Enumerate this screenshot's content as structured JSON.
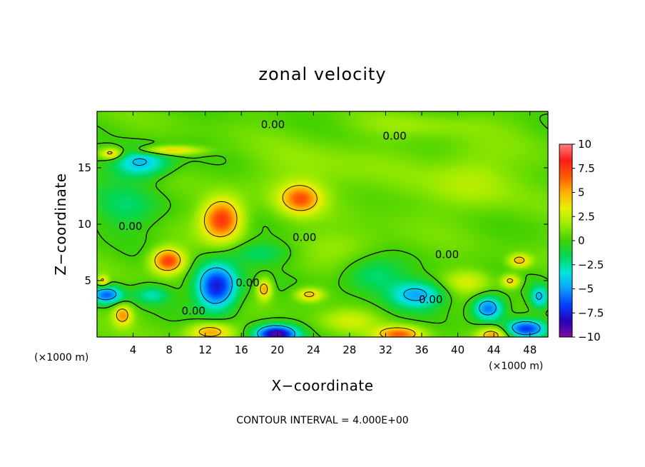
{
  "chart_data": {
    "type": "heatmap",
    "title": "zonal velocity",
    "xlabel": "X−coordinate",
    "ylabel": "Z−coordinate",
    "x_unit": "(×1000 m)",
    "xlim": [
      0,
      50
    ],
    "ylim": [
      0,
      20
    ],
    "x_ticks": [
      4,
      8,
      12,
      16,
      20,
      24,
      28,
      32,
      36,
      40,
      44,
      48
    ],
    "y_ticks": [
      5,
      10,
      15
    ],
    "colorbar": {
      "min": -10,
      "max": 10,
      "ticks": [
        "10",
        "7.5",
        "5",
        "2.5",
        "0",
        "−2.5",
        "−5",
        "−7.5",
        "−10"
      ],
      "tick_values": [
        10,
        7.5,
        5,
        2.5,
        0,
        -2.5,
        -5,
        -7.5,
        -10
      ],
      "colors": [
        "#7a0f9c",
        "#2a00b8",
        "#0040ff",
        "#0a9fff",
        "#00e5e0",
        "#00d85a",
        "#40d000",
        "#9aeb00",
        "#e6f000",
        "#ffb000",
        "#ff5a00",
        "#ff1a1a",
        "#ff8080"
      ]
    },
    "contour_interval_label": "CONTOUR INTERVAL = 4.000E+00",
    "contour_labels": [
      {
        "text": "0.00",
        "x": 19.5,
        "z": 18.5
      },
      {
        "text": "0.00",
        "x": 33.0,
        "z": 17.5
      },
      {
        "text": "0.00",
        "x": 3.7,
        "z": 9.5
      },
      {
        "text": "0.00",
        "x": 23.0,
        "z": 8.5
      },
      {
        "text": "0.00",
        "x": 38.8,
        "z": 7.0
      },
      {
        "text": "0.00",
        "x": 16.7,
        "z": 4.5
      },
      {
        "text": "0.00",
        "x": 10.7,
        "z": 2.0
      },
      {
        "text": "0.00",
        "x": 37.0,
        "z": 3.0
      }
    ],
    "anomalies": [
      {
        "x": 13.8,
        "z": 10.5,
        "sx": 2.2,
        "sz": 1.8,
        "v": 7.5
      },
      {
        "x": 22.5,
        "z": 12.3,
        "sx": 2.2,
        "sz": 1.3,
        "v": 5.5
      },
      {
        "x": 7.8,
        "z": 6.8,
        "sx": 1.8,
        "sz": 1.1,
        "v": 7.5
      },
      {
        "x": 13.2,
        "z": 4.5,
        "sx": 2.3,
        "sz": 2.0,
        "v": -8.5
      },
      {
        "x": 4.8,
        "z": 15.5,
        "sx": 3.2,
        "sz": 1.3,
        "v": -5.0
      },
      {
        "x": 19.8,
        "z": 0.3,
        "sx": 2.3,
        "sz": 0.8,
        "v": -9.5
      },
      {
        "x": 12.5,
        "z": 0.5,
        "sx": 2.4,
        "sz": 0.8,
        "v": 5.0
      },
      {
        "x": 2.8,
        "z": 2.0,
        "sx": 1.0,
        "sz": 0.9,
        "v": 5.0
      },
      {
        "x": 1.0,
        "z": 3.8,
        "sx": 1.8,
        "sz": 0.8,
        "v": -6.5
      },
      {
        "x": 18.5,
        "z": 4.3,
        "sx": 0.8,
        "sz": 0.9,
        "v": 5.0
      },
      {
        "x": 23.5,
        "z": 3.8,
        "sx": 1.5,
        "sz": 0.6,
        "v": 4.5
      },
      {
        "x": 33.5,
        "z": 0.3,
        "sx": 2.5,
        "sz": 0.7,
        "v": 6.0
      },
      {
        "x": 35.5,
        "z": 3.8,
        "sx": 3.0,
        "sz": 1.2,
        "v": -5.0
      },
      {
        "x": 43.3,
        "z": 2.6,
        "sx": 1.7,
        "sz": 1.1,
        "v": -6.5
      },
      {
        "x": 43.8,
        "z": 0.2,
        "sx": 1.6,
        "sz": 0.7,
        "v": 5.0
      },
      {
        "x": 47.5,
        "z": 0.8,
        "sx": 2.2,
        "sz": 0.8,
        "v": -7.0
      },
      {
        "x": 46.8,
        "z": 6.8,
        "sx": 1.2,
        "sz": 0.6,
        "v": 4.5
      },
      {
        "x": 45.8,
        "z": 5.0,
        "sx": 1.0,
        "sz": 0.6,
        "v": 4.5
      },
      {
        "x": 49.0,
        "z": 3.6,
        "sx": 1.0,
        "sz": 1.0,
        "v": -4.5
      },
      {
        "x": 1.5,
        "z": 16.3,
        "sx": 1.2,
        "sz": 0.5,
        "v": 5.0
      },
      {
        "x": 8.0,
        "z": 16.6,
        "sx": 3.5,
        "sz": 0.4,
        "v": 4.5
      },
      {
        "x": 41.5,
        "z": 14.0,
        "sx": 4.5,
        "sz": 3.0,
        "v": 2.0
      },
      {
        "x": 25.0,
        "z": 14.5,
        "sx": 8.0,
        "sz": 3.0,
        "v": 1.2
      },
      {
        "x": 27.5,
        "z": 8.2,
        "sx": 5.0,
        "sz": 1.5,
        "v": 1.2
      },
      {
        "x": 3.0,
        "z": 11.5,
        "sx": 4.0,
        "sz": 2.0,
        "v": -2.0
      },
      {
        "x": 36.0,
        "z": 18.8,
        "sx": 8.0,
        "sz": 1.0,
        "v": 1.0
      },
      {
        "x": 18.0,
        "z": 7.5,
        "sx": 3.5,
        "sz": 1.0,
        "v": -2.2
      },
      {
        "x": 30.5,
        "z": 5.5,
        "sx": 3.5,
        "sz": 1.5,
        "v": -2.5
      },
      {
        "x": 41.0,
        "z": 5.0,
        "sx": 2.5,
        "sz": 1.0,
        "v": 2.5
      },
      {
        "x": 6.0,
        "z": 3.8,
        "sx": 2.0,
        "sz": 0.8,
        "v": -3.0
      },
      {
        "x": 28.0,
        "z": 1.5,
        "sx": 3.0,
        "sz": 1.0,
        "v": 2.0
      },
      {
        "x": 0.6,
        "z": 5.0,
        "sx": 0.6,
        "sz": 0.5,
        "v": 4.0
      }
    ]
  }
}
